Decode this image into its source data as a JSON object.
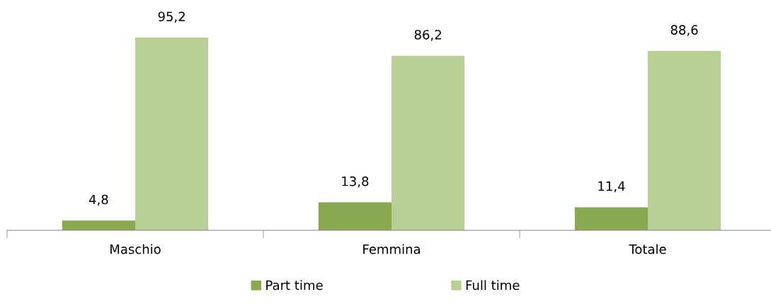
{
  "chart_data": {
    "type": "bar",
    "categories": [
      "Maschio",
      "Femmina",
      "Totale"
    ],
    "series": [
      {
        "name": "Part time",
        "color": "#8aa84f",
        "values": [
          4.8,
          13.8,
          11.4
        ],
        "value_labels": [
          "4,8",
          "13,8",
          "11,4"
        ]
      },
      {
        "name": "Full time",
        "color": "#b9cf95",
        "values": [
          95.2,
          86.2,
          88.6
        ],
        "value_labels": [
          "95,2",
          "86,2",
          "88,6"
        ]
      }
    ],
    "grid": false,
    "legend": "bottom",
    "tick_labels": "x"
  }
}
